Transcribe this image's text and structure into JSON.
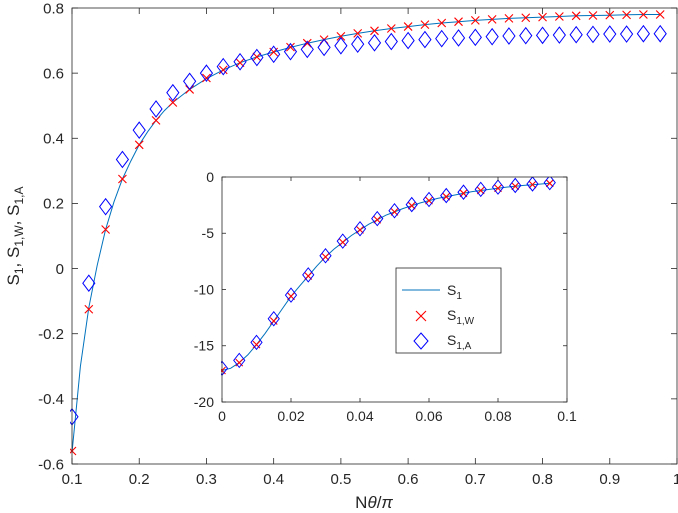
{
  "colors": {
    "line": "#0072BD",
    "cross": "#FF0000",
    "diamond": "#0000FF",
    "axis": "#262626"
  },
  "chart_data": [
    {
      "type": "scatter",
      "role": "main",
      "xlabel_parts": [
        "N",
        "θ",
        "/",
        "π"
      ],
      "ylabel_parts": [
        {
          "t": "S"
        },
        {
          "t": "1",
          "sub": true
        },
        {
          "t": ", S"
        },
        {
          "t": "1,W",
          "sub": true
        },
        {
          "t": ", S"
        },
        {
          "t": "1,A",
          "sub": true
        }
      ],
      "xlim": [
        0.1,
        1.0
      ],
      "ylim": [
        -0.6,
        0.8
      ],
      "xticks": [
        0.1,
        0.2,
        0.3,
        0.4,
        0.5,
        0.6,
        0.7,
        0.8,
        0.9,
        1.0
      ],
      "xtick_labels": [
        "0.1",
        "0.2",
        "0.3",
        "0.4",
        "0.5",
        "0.6",
        "0.7",
        "0.8",
        "0.9",
        "1"
      ],
      "yticks": [
        -0.6,
        -0.4,
        -0.2,
        0,
        0.2,
        0.4,
        0.6,
        0.8
      ],
      "ytick_labels": [
        "-0.6",
        "-0.4",
        "-0.2",
        "0",
        "0.2",
        "0.4",
        "0.6",
        "0.8"
      ],
      "grid": false,
      "series": [
        {
          "name": "S1",
          "style": "line",
          "x": [
            0.1,
            0.1125,
            0.125,
            0.1375,
            0.15,
            0.1625,
            0.175,
            0.1875,
            0.2,
            0.2125,
            0.225,
            0.2375,
            0.25,
            0.275,
            0.3,
            0.325,
            0.35,
            0.375,
            0.4,
            0.425,
            0.45,
            0.475,
            0.5,
            0.525,
            0.55,
            0.575,
            0.6,
            0.625,
            0.65,
            0.675,
            0.7,
            0.725,
            0.75,
            0.775,
            0.8,
            0.825,
            0.85,
            0.875,
            0.9,
            0.925,
            0.95,
            0.975
          ],
          "y": [
            -0.565,
            -0.3,
            -0.12,
            0.01,
            0.12,
            0.205,
            0.275,
            0.33,
            0.38,
            0.42,
            0.455,
            0.485,
            0.51,
            0.55,
            0.583,
            0.61,
            0.632,
            0.65,
            0.665,
            0.679,
            0.692,
            0.703,
            0.713,
            0.722,
            0.73,
            0.737,
            0.743,
            0.749,
            0.754,
            0.758,
            0.762,
            0.765,
            0.768,
            0.77,
            0.772,
            0.774,
            0.776,
            0.777,
            0.778,
            0.779,
            0.78,
            0.78
          ]
        },
        {
          "name": "S1,W",
          "style": "cross",
          "x": [
            0.1,
            0.125,
            0.15,
            0.175,
            0.2,
            0.225,
            0.25,
            0.275,
            0.3,
            0.325,
            0.35,
            0.375,
            0.4,
            0.425,
            0.45,
            0.475,
            0.5,
            0.525,
            0.55,
            0.575,
            0.6,
            0.625,
            0.65,
            0.675,
            0.7,
            0.725,
            0.75,
            0.775,
            0.8,
            0.825,
            0.85,
            0.875,
            0.9,
            0.925,
            0.95,
            0.975
          ],
          "y": [
            -0.56,
            -0.125,
            0.12,
            0.275,
            0.38,
            0.455,
            0.51,
            0.55,
            0.585,
            0.61,
            0.632,
            0.65,
            0.665,
            0.68,
            0.692,
            0.703,
            0.713,
            0.722,
            0.73,
            0.737,
            0.743,
            0.749,
            0.754,
            0.758,
            0.762,
            0.765,
            0.768,
            0.77,
            0.772,
            0.774,
            0.776,
            0.777,
            0.778,
            0.779,
            0.78,
            0.78
          ]
        },
        {
          "name": "S1,A",
          "style": "diamond",
          "x": [
            0.1,
            0.125,
            0.15,
            0.175,
            0.2,
            0.225,
            0.25,
            0.275,
            0.3,
            0.325,
            0.35,
            0.375,
            0.4,
            0.425,
            0.45,
            0.475,
            0.5,
            0.525,
            0.55,
            0.575,
            0.6,
            0.625,
            0.65,
            0.675,
            0.7,
            0.725,
            0.75,
            0.775,
            0.8,
            0.825,
            0.85,
            0.875,
            0.9,
            0.925,
            0.95,
            0.975
          ],
          "y": [
            -0.455,
            -0.045,
            0.19,
            0.335,
            0.425,
            0.49,
            0.54,
            0.575,
            0.6,
            0.62,
            0.635,
            0.648,
            0.658,
            0.666,
            0.673,
            0.679,
            0.684,
            0.689,
            0.693,
            0.697,
            0.7,
            0.703,
            0.706,
            0.708,
            0.71,
            0.712,
            0.714,
            0.715,
            0.716,
            0.717,
            0.718,
            0.719,
            0.72,
            0.72,
            0.721,
            0.721
          ]
        }
      ]
    },
    {
      "type": "scatter",
      "role": "inset",
      "xlim": [
        0,
        0.1
      ],
      "ylim": [
        -20,
        0
      ],
      "xticks": [
        0,
        0.02,
        0.04,
        0.06,
        0.08,
        0.1
      ],
      "xtick_labels": [
        "0",
        "0.02",
        "0.04",
        "0.06",
        "0.08",
        "0.1"
      ],
      "yticks": [
        -20,
        -15,
        -10,
        -5,
        0
      ],
      "ytick_labels": [
        "-20",
        "-15",
        "-10",
        "-5",
        "0"
      ],
      "grid": false,
      "legend": {
        "placement": "right",
        "entries": [
          {
            "style": "line",
            "base": "S",
            "sub": "1"
          },
          {
            "style": "cross",
            "base": "S",
            "sub": "1,W"
          },
          {
            "style": "diamond",
            "base": "S",
            "sub": "1,A"
          }
        ]
      },
      "series": [
        {
          "name": "S1",
          "style": "line",
          "x": [
            0,
            0.0025,
            0.005,
            0.0075,
            0.01,
            0.0125,
            0.015,
            0.0175,
            0.02,
            0.0225,
            0.025,
            0.0275,
            0.03,
            0.0325,
            0.035,
            0.0375,
            0.04,
            0.0425,
            0.045,
            0.0475,
            0.05,
            0.0525,
            0.055,
            0.0575,
            0.06,
            0.0625,
            0.065,
            0.0675,
            0.07,
            0.0725,
            0.075,
            0.0775,
            0.08,
            0.0825,
            0.085,
            0.0875,
            0.09,
            0.0925,
            0.095
          ],
          "y": [
            -17.2,
            -17.0,
            -16.5,
            -15.8,
            -14.9,
            -13.9,
            -12.8,
            -11.7,
            -10.6,
            -9.7,
            -8.8,
            -7.9,
            -7.1,
            -6.4,
            -5.8,
            -5.2,
            -4.7,
            -4.2,
            -3.8,
            -3.4,
            -3.1,
            -2.8,
            -2.55,
            -2.3,
            -2.1,
            -1.9,
            -1.75,
            -1.6,
            -1.45,
            -1.3,
            -1.2,
            -1.1,
            -1.0,
            -0.9,
            -0.82,
            -0.75,
            -0.68,
            -0.62,
            -0.56
          ]
        },
        {
          "name": "S1,W",
          "style": "cross",
          "x": [
            0,
            0.005,
            0.01,
            0.015,
            0.02,
            0.025,
            0.03,
            0.035,
            0.04,
            0.045,
            0.05,
            0.055,
            0.06,
            0.065,
            0.07,
            0.075,
            0.08,
            0.085,
            0.09,
            0.095
          ],
          "y": [
            -17.2,
            -16.5,
            -14.9,
            -12.8,
            -10.6,
            -8.8,
            -7.1,
            -5.8,
            -4.7,
            -3.8,
            -3.1,
            -2.55,
            -2.1,
            -1.75,
            -1.45,
            -1.2,
            -1.0,
            -0.82,
            -0.68,
            -0.56
          ]
        },
        {
          "name": "S1,A",
          "style": "diamond",
          "x": [
            0,
            0.005,
            0.01,
            0.015,
            0.02,
            0.025,
            0.03,
            0.035,
            0.04,
            0.045,
            0.05,
            0.055,
            0.06,
            0.065,
            0.07,
            0.075,
            0.08,
            0.085,
            0.09,
            0.095
          ],
          "y": [
            -17.0,
            -16.3,
            -14.7,
            -12.6,
            -10.5,
            -8.7,
            -7.0,
            -5.7,
            -4.6,
            -3.7,
            -3.0,
            -2.45,
            -2.0,
            -1.65,
            -1.35,
            -1.1,
            -0.9,
            -0.75,
            -0.62,
            -0.5
          ]
        }
      ]
    }
  ]
}
